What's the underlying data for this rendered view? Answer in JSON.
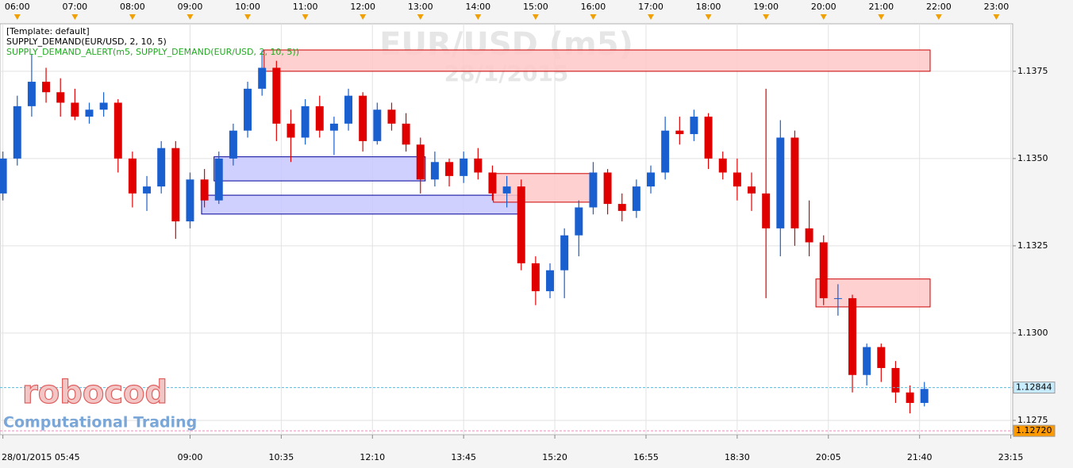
{
  "chart_data": {
    "type": "candlestick",
    "title": "EUR/USD (m5)",
    "subtitle": "28/1/2015",
    "indicators": [
      {
        "text": "[Template: default]",
        "color": "#000000"
      },
      {
        "text": "SUPPLY_DEMAND(EUR/USD, 2, 10, 5)",
        "color": "#000000"
      },
      {
        "text": "SUPPLY_DEMAND_ALERT(m5, SUPPLY_DEMAND(EUR/USD, 2, 10, 5))",
        "color": "#22aa22"
      }
    ],
    "logo": "robocod",
    "logo_tagline": "Computational Trading",
    "up_color": "#1a5fd0",
    "down_color": "#e00000",
    "xlim": [
      342,
      1397
    ],
    "ylim": [
      1.12709,
      1.13886
    ],
    "grid": true,
    "yticks": [
      1.1275,
      {
        "value": 1.13,
        "label": "1.1300"
      },
      1.1325,
      {
        "value": 1.135,
        "label": "1.1350"
      },
      1.1375
    ],
    "xticks": [
      {
        "value": 345,
        "label": "28/01/2015 05:45"
      },
      {
        "value": 540,
        "label": "09:00"
      },
      {
        "value": 635,
        "label": "10:35"
      },
      {
        "value": 730,
        "label": "12:10"
      },
      {
        "value": 825,
        "label": "13:45"
      },
      {
        "value": 920,
        "label": "15:20"
      },
      {
        "value": 1015,
        "label": "16:55"
      },
      {
        "value": 1110,
        "label": "18:30"
      },
      {
        "value": 1205,
        "label": "20:05"
      },
      {
        "value": 1300,
        "label": "21:40"
      },
      {
        "value": 1395,
        "label": "23:15"
      }
    ],
    "x2ticks": [
      {
        "value": 360,
        "label": "06:00"
      },
      {
        "value": 420,
        "label": "07:00"
      },
      {
        "value": 480,
        "label": "08:00"
      },
      {
        "value": 540,
        "label": "09:00"
      },
      {
        "value": 600,
        "label": "10:00"
      },
      {
        "value": 660,
        "label": "11:00"
      },
      {
        "value": 720,
        "label": "12:00"
      },
      {
        "value": 780,
        "label": "13:00"
      },
      {
        "value": 840,
        "label": "14:00"
      },
      {
        "value": 900,
        "label": "15:00"
      },
      {
        "value": 960,
        "label": "16:00"
      },
      {
        "value": 1020,
        "label": "17:00"
      },
      {
        "value": 1080,
        "label": "18:00"
      },
      {
        "value": 1140,
        "label": "19:00"
      },
      {
        "value": 1200,
        "label": "20:00"
      },
      {
        "value": 1260,
        "label": "21:00"
      },
      {
        "value": 1320,
        "label": "22:00"
      },
      {
        "value": 1380,
        "label": "23:00"
      }
    ],
    "x": [
      345,
      360,
      375,
      390,
      405,
      420,
      435,
      450,
      465,
      480,
      495,
      510,
      525,
      540,
      555,
      570,
      585,
      600,
      615,
      630,
      645,
      660,
      675,
      690,
      705,
      720,
      735,
      750,
      765,
      780,
      795,
      810,
      825,
      840,
      855,
      870,
      885,
      900,
      915,
      930,
      945,
      960,
      975,
      990,
      1005,
      1020,
      1035,
      1050,
      1065,
      1080,
      1095,
      1110,
      1125,
      1140,
      1155,
      1170,
      1185,
      1200,
      1215,
      1230,
      1245,
      1260,
      1275,
      1290,
      1305
    ],
    "open": [
      1.134,
      1.135,
      1.1365,
      1.1372,
      1.1369,
      1.1366,
      1.1362,
      1.1364,
      1.1366,
      1.135,
      1.134,
      1.1342,
      1.1353,
      1.1332,
      1.1344,
      1.1338,
      1.135,
      1.1358,
      1.137,
      1.1376,
      1.136,
      1.1356,
      1.1365,
      1.1358,
      1.136,
      1.1368,
      1.1355,
      1.1364,
      1.136,
      1.1354,
      1.1344,
      1.1349,
      1.1345,
      1.135,
      1.1346,
      1.134,
      1.1342,
      1.132,
      1.1312,
      1.1318,
      1.1328,
      1.1336,
      1.1346,
      1.1337,
      1.1335,
      1.1342,
      1.1346,
      1.1358,
      1.1357,
      1.1362,
      1.135,
      1.1346,
      1.1342,
      1.134,
      1.133,
      1.1356,
      1.133,
      1.1326,
      1.131,
      1.131,
      1.1288,
      1.1296,
      1.129,
      1.1283,
      1.128
    ],
    "high": [
      1.1352,
      1.1368,
      1.138,
      1.1376,
      1.1373,
      1.137,
      1.1366,
      1.1369,
      1.1367,
      1.1352,
      1.1345,
      1.1355,
      1.1355,
      1.1346,
      1.1347,
      1.1352,
      1.136,
      1.1372,
      1.1381,
      1.1378,
      1.1364,
      1.1367,
      1.1368,
      1.1362,
      1.137,
      1.1369,
      1.1366,
      1.1366,
      1.1363,
      1.1356,
      1.1352,
      1.135,
      1.1352,
      1.1353,
      1.1348,
      1.1345,
      1.1344,
      1.1322,
      1.132,
      1.133,
      1.1338,
      1.1349,
      1.1347,
      1.134,
      1.1344,
      1.1348,
      1.1362,
      1.1362,
      1.1364,
      1.1363,
      1.1352,
      1.135,
      1.1346,
      1.137,
      1.1361,
      1.1358,
      1.1338,
      1.1328,
      1.1314,
      1.1311,
      1.1297,
      1.1297,
      1.1292,
      1.1285,
      1.1286
    ],
    "low": [
      1.1338,
      1.1348,
      1.1362,
      1.1366,
      1.1362,
      1.1361,
      1.136,
      1.1362,
      1.1346,
      1.1336,
      1.1335,
      1.134,
      1.1327,
      1.133,
      1.1336,
      1.1337,
      1.1348,
      1.1356,
      1.1368,
      1.1355,
      1.1349,
      1.1354,
      1.1356,
      1.1351,
      1.1358,
      1.1352,
      1.1354,
      1.1358,
      1.1352,
      1.134,
      1.1342,
      1.1342,
      1.1343,
      1.1344,
      1.1338,
      1.1336,
      1.1318,
      1.1308,
      1.131,
      1.131,
      1.1322,
      1.1334,
      1.1334,
      1.1332,
      1.1333,
      1.134,
      1.1344,
      1.1354,
      1.1355,
      1.1347,
      1.1344,
      1.1338,
      1.1335,
      1.131,
      1.1322,
      1.1325,
      1.1322,
      1.1308,
      1.1305,
      1.1283,
      1.1285,
      1.1286,
      1.128,
      1.1277,
      1.1279
    ],
    "close": [
      1.135,
      1.1365,
      1.1372,
      1.1369,
      1.1366,
      1.1362,
      1.1364,
      1.1366,
      1.135,
      1.134,
      1.1342,
      1.1353,
      1.1332,
      1.1344,
      1.1338,
      1.135,
      1.1358,
      1.137,
      1.1376,
      1.136,
      1.1356,
      1.1365,
      1.1358,
      1.136,
      1.1368,
      1.1355,
      1.1364,
      1.136,
      1.1354,
      1.1344,
      1.1349,
      1.1345,
      1.135,
      1.1346,
      1.134,
      1.1342,
      1.132,
      1.1312,
      1.1318,
      1.1328,
      1.1336,
      1.1346,
      1.1337,
      1.1335,
      1.1342,
      1.1346,
      1.1358,
      1.1357,
      1.1362,
      1.135,
      1.1346,
      1.1342,
      1.134,
      1.133,
      1.1356,
      1.133,
      1.1326,
      1.131,
      1.131,
      1.1288,
      1.1296,
      1.129,
      1.1283,
      1.128,
      1.1284
    ],
    "zones": [
      {
        "start": 617,
        "end": 1311,
        "top": 1.13811,
        "bottom": 1.1375,
        "color": "#ffc8c8",
        "border": "#cc0000"
      },
      {
        "start": 565,
        "end": 785,
        "top": 1.13505,
        "bottom": 1.13436,
        "color": "#c8c8ff",
        "border": "#000099"
      },
      {
        "start": 552,
        "end": 885,
        "top": 1.13395,
        "bottom": 1.13341,
        "color": "#c8c8ff",
        "border": "#000099"
      },
      {
        "start": 856,
        "end": 961,
        "top": 1.13457,
        "bottom": 1.13375,
        "color": "#ffc8c8",
        "border": "#cc0000"
      },
      {
        "start": 1192,
        "end": 1311,
        "top": 1.13155,
        "bottom": 1.13075,
        "color": "#ffc8c8",
        "border": "#cc0000"
      }
    ],
    "price_lines": [
      {
        "value": 1.12844,
        "color": "#55bbdd",
        "box": "#c8ecff"
      },
      {
        "value": {
          "value": 1.1272,
          "label": "1.12720"
        },
        "color": "#ee88bb",
        "box": "#ff9900"
      }
    ]
  }
}
